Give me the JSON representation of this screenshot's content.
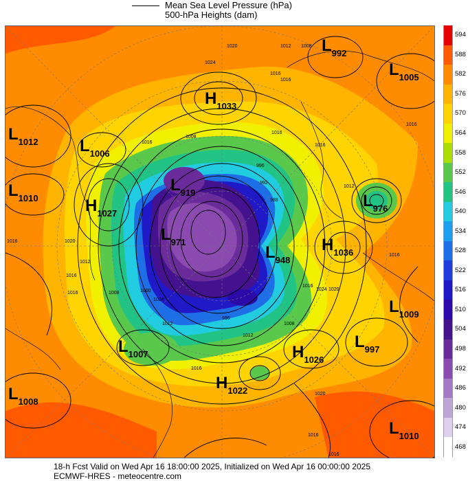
{
  "legend": {
    "mslp_label": "Mean Sea Level Pressure (hPa)",
    "heights_label": "500-hPa Heights (dam)"
  },
  "colorbar": {
    "ticks": [
      "594",
      "588",
      "582",
      "576",
      "570",
      "564",
      "558",
      "552",
      "546",
      "540",
      "534",
      "528",
      "522",
      "516",
      "510",
      "504",
      "498",
      "492",
      "486",
      "480",
      "474",
      "468"
    ],
    "colors": [
      "#e60000",
      "#ff5a00",
      "#ff8c00",
      "#ffb400",
      "#ffd400",
      "#f0f000",
      "#aadd00",
      "#5ac84a",
      "#22c486",
      "#22cce0",
      "#1d9ff0",
      "#1e6fe6",
      "#1f3cdc",
      "#1f19c8",
      "#2c0aa8",
      "#44128f",
      "#6a2c9a",
      "#8a4ab0",
      "#a47ac6",
      "#bfa6d8",
      "#dcd0ec",
      "#ffffff"
    ]
  },
  "centers": [
    {
      "type": "L",
      "value": "992"
    },
    {
      "type": "L",
      "value": "1005"
    },
    {
      "type": "H",
      "value": "1033"
    },
    {
      "type": "L",
      "value": "1012"
    },
    {
      "type": "L",
      "value": "1006"
    },
    {
      "type": "L",
      "value": "1010"
    },
    {
      "type": "H",
      "value": "1027"
    },
    {
      "type": "L",
      "value": "919"
    },
    {
      "type": "L",
      "value": "971"
    },
    {
      "type": "L",
      "value": "976"
    },
    {
      "type": "H",
      "value": "1036"
    },
    {
      "type": "L",
      "value": "948"
    },
    {
      "type": "L",
      "value": "1009"
    },
    {
      "type": "L",
      "value": "997"
    },
    {
      "type": "H",
      "value": "1026"
    },
    {
      "type": "L",
      "value": "1007"
    },
    {
      "type": "H",
      "value": "1022"
    },
    {
      "type": "L",
      "value": "1008"
    },
    {
      "type": "L",
      "value": "1010"
    }
  ],
  "isobar_labels": [
    "1020",
    "1024",
    "1012",
    "1008",
    "1016",
    "1016",
    "1008",
    "1016",
    "996",
    "992",
    "988",
    "1016",
    "1016",
    "1012",
    "1020",
    "1016",
    "1016",
    "1012",
    "1016",
    "1020",
    "1016",
    "1012",
    "1008",
    "1000",
    "1004",
    "996",
    "1012",
    "1008",
    "1016",
    "1024",
    "1016",
    "1016",
    "1020",
    "1016",
    "1016"
  ],
  "footer": {
    "line1": "18-h Fcst Valid on Wed Apr 16 18:00:00 2025, Initialized on Wed Apr 16 00:00:00 2025",
    "line2": "ECMWF-HRES   - meteocentre.com"
  }
}
